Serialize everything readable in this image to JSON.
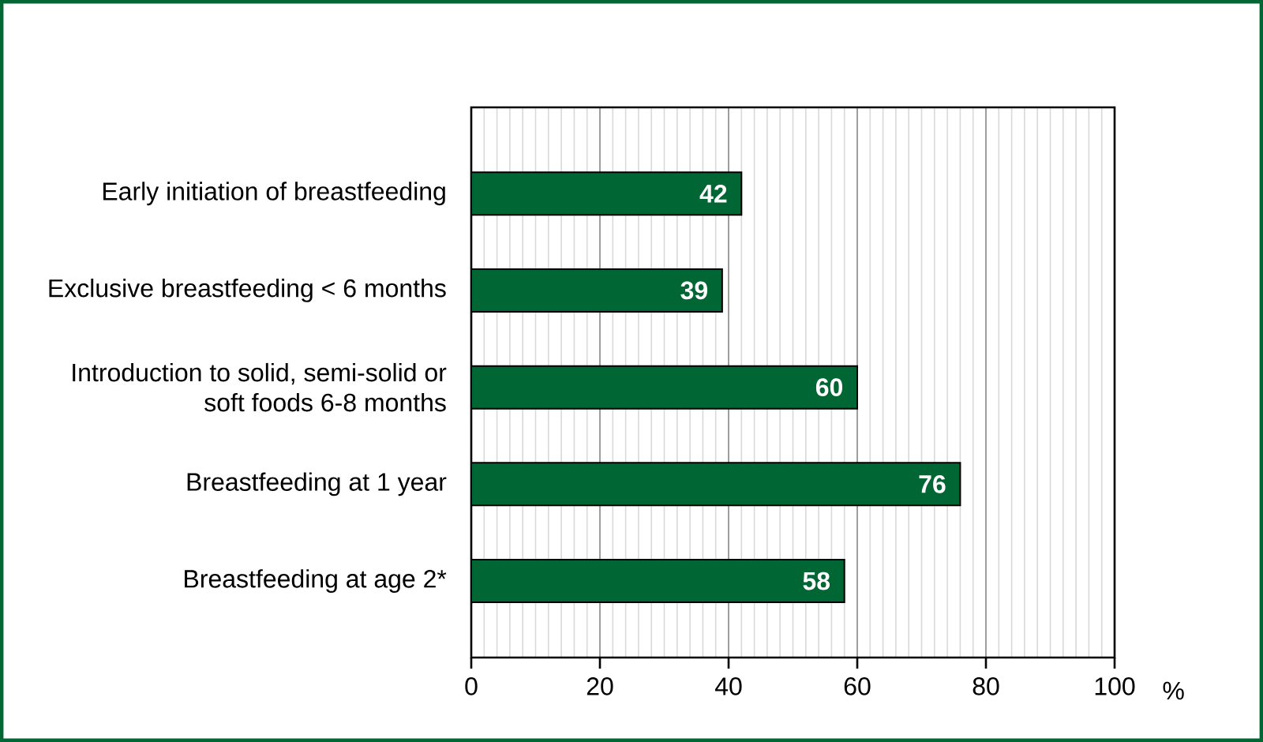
{
  "chart_data": {
    "type": "bar",
    "orientation": "horizontal",
    "categories": [
      "Early initiation of breastfeeding",
      "Exclusive breastfeeding < 6 months",
      "Introduction to solid, semi-solid or soft foods 6-8 months",
      "Breastfeeding at 1 year",
      "Breastfeeding at age 2*"
    ],
    "values": [
      42,
      39,
      60,
      76,
      58
    ],
    "color": "#006633",
    "xlim": [
      0,
      100
    ],
    "xticks": [
      0,
      20,
      40,
      60,
      80,
      100
    ],
    "xlabel": "%",
    "grid": "x",
    "data_labels": true
  }
}
